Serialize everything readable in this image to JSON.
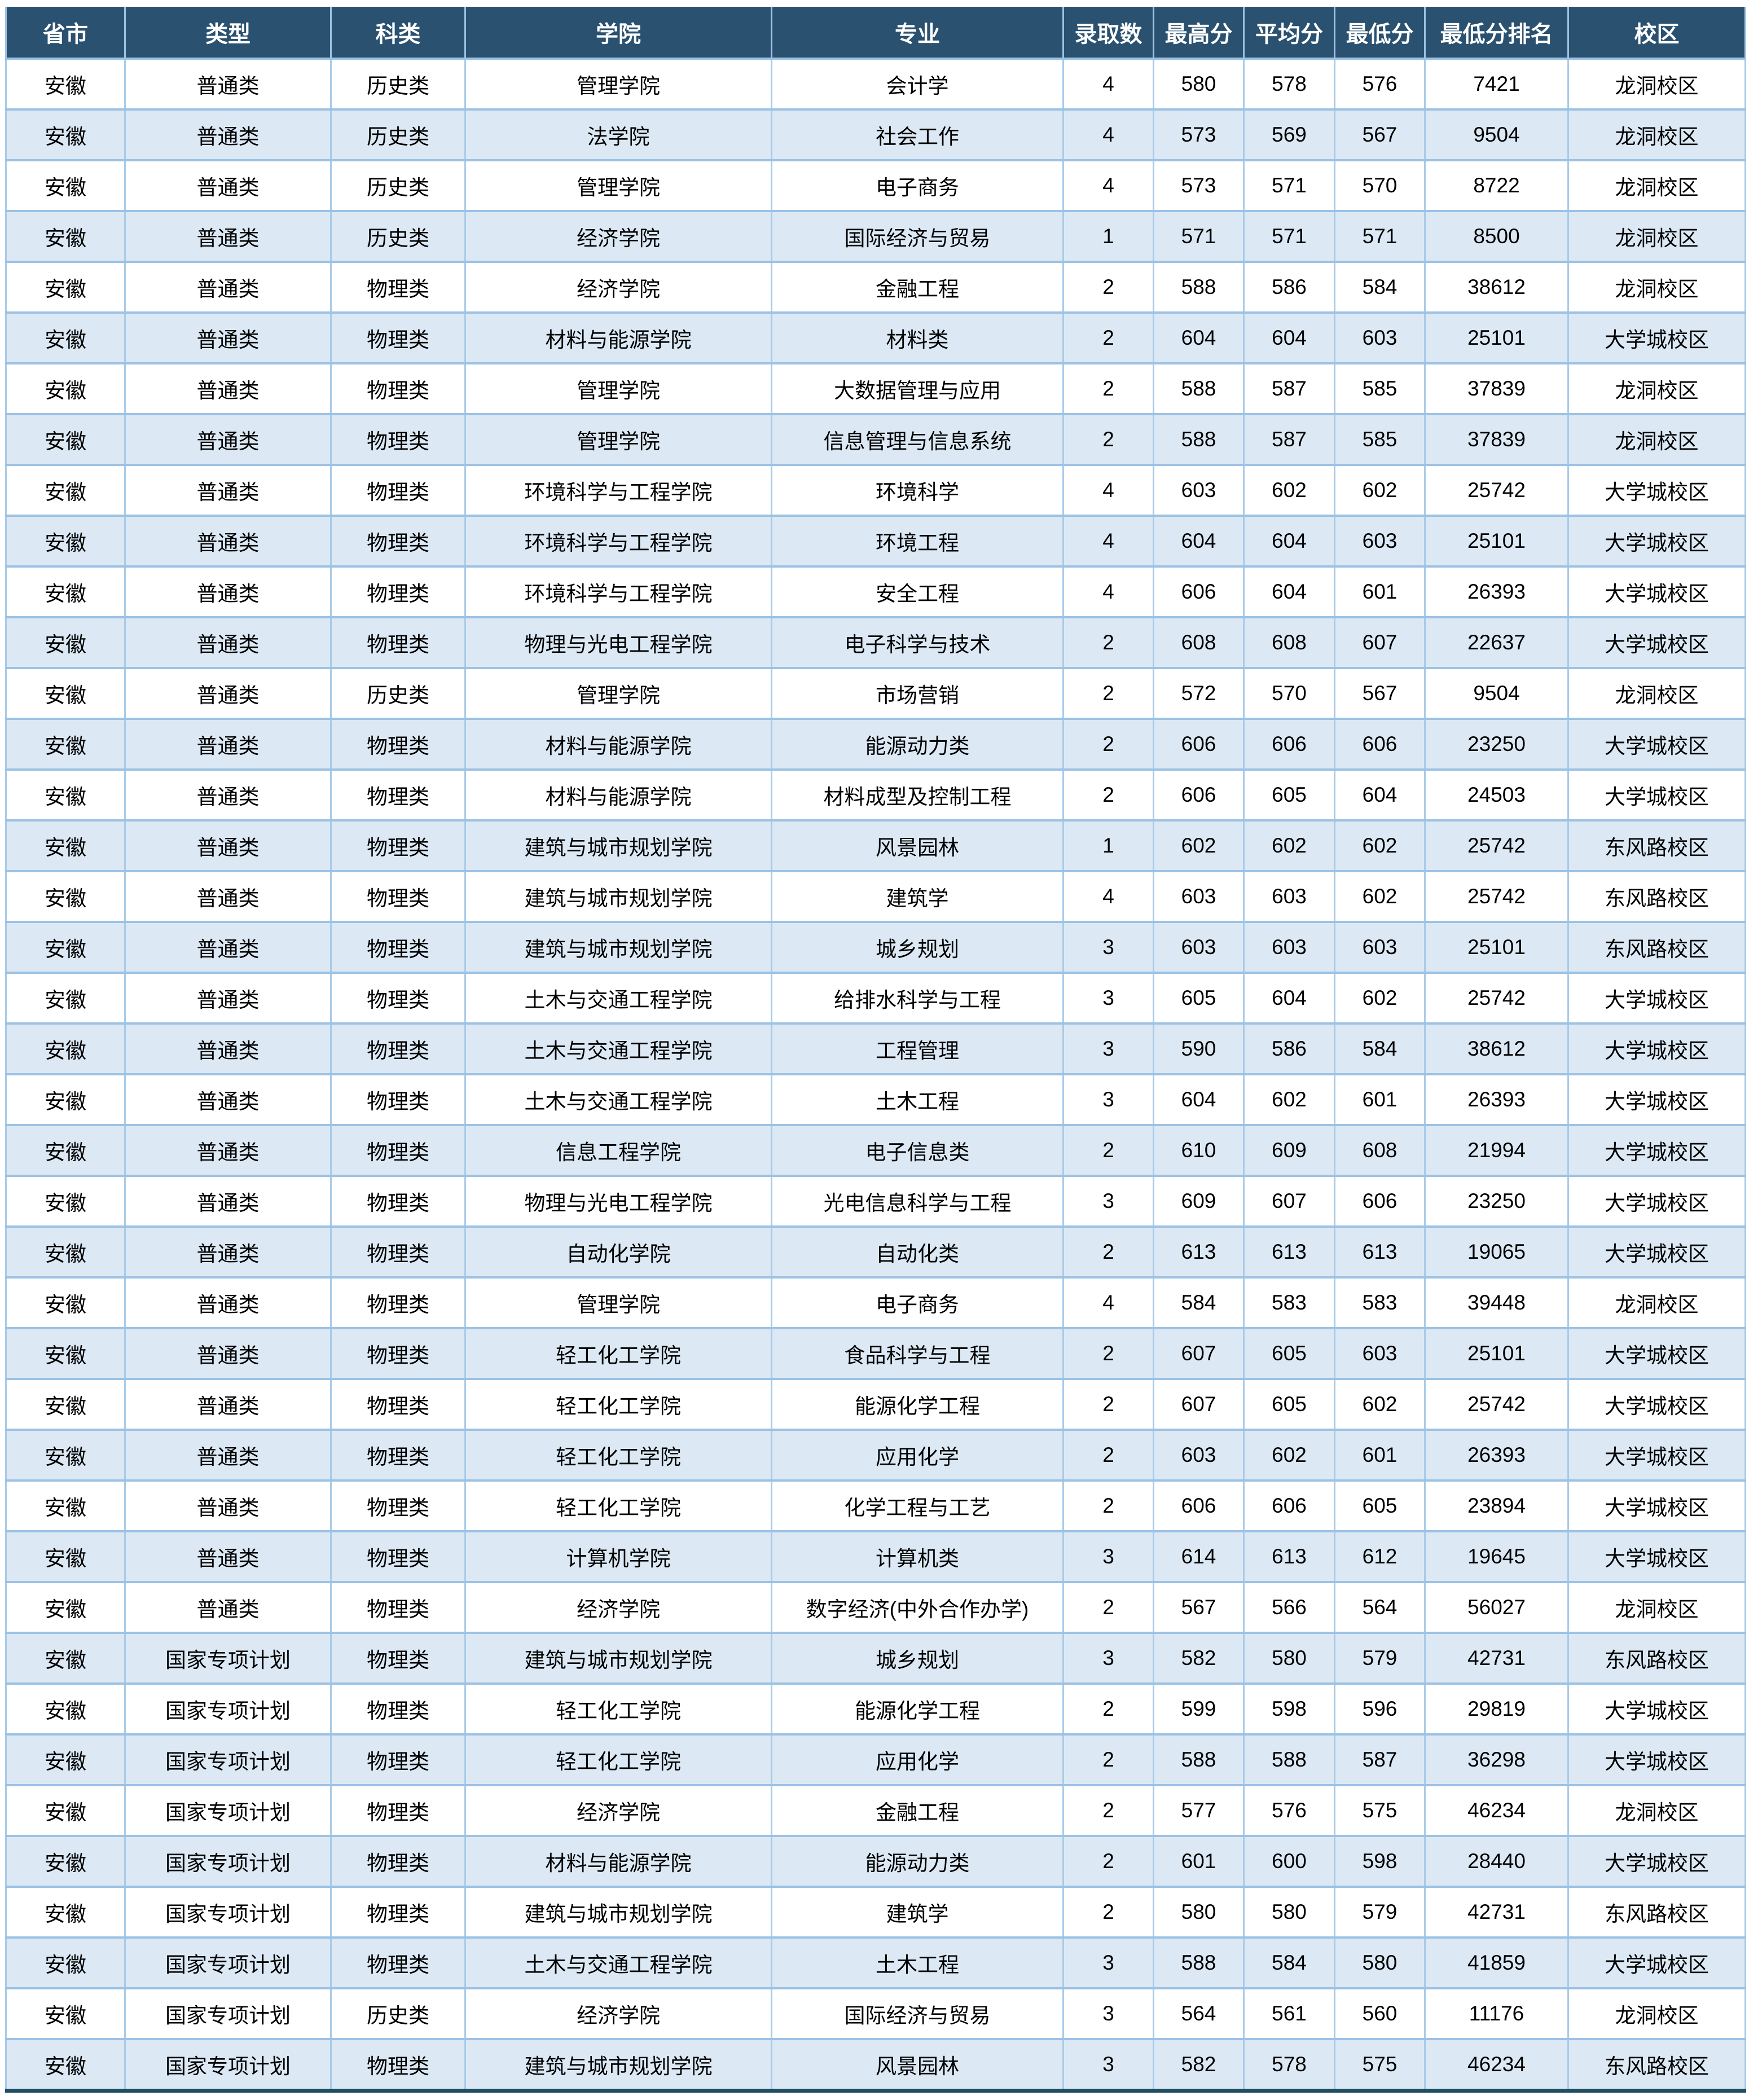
{
  "table": {
    "colors": {
      "header_bg": "#2A5170",
      "header_text": "#FFFFFF",
      "row_bg": "#FFFFFF",
      "row_alt_bg": "#DCE9F5",
      "grid_vertical": "#A8CBE9",
      "grid_horizontal": "#9CC2E4",
      "bottom_border": "#1F4E63",
      "cell_text": "#000000"
    },
    "columns": [
      "省市",
      "类型",
      "科类",
      "学院",
      "专业",
      "录取数",
      "最高分",
      "平均分",
      "最低分",
      "最低分排名",
      "校区"
    ],
    "rows": [
      [
        "安徽",
        "普通类",
        "历史类",
        "管理学院",
        "会计学",
        "4",
        "580",
        "578",
        "576",
        "7421",
        "龙洞校区"
      ],
      [
        "安徽",
        "普通类",
        "历史类",
        "法学院",
        "社会工作",
        "4",
        "573",
        "569",
        "567",
        "9504",
        "龙洞校区"
      ],
      [
        "安徽",
        "普通类",
        "历史类",
        "管理学院",
        "电子商务",
        "4",
        "573",
        "571",
        "570",
        "8722",
        "龙洞校区"
      ],
      [
        "安徽",
        "普通类",
        "历史类",
        "经济学院",
        "国际经济与贸易",
        "1",
        "571",
        "571",
        "571",
        "8500",
        "龙洞校区"
      ],
      [
        "安徽",
        "普通类",
        "物理类",
        "经济学院",
        "金融工程",
        "2",
        "588",
        "586",
        "584",
        "38612",
        "龙洞校区"
      ],
      [
        "安徽",
        "普通类",
        "物理类",
        "材料与能源学院",
        "材料类",
        "2",
        "604",
        "604",
        "603",
        "25101",
        "大学城校区"
      ],
      [
        "安徽",
        "普通类",
        "物理类",
        "管理学院",
        "大数据管理与应用",
        "2",
        "588",
        "587",
        "585",
        "37839",
        "龙洞校区"
      ],
      [
        "安徽",
        "普通类",
        "物理类",
        "管理学院",
        "信息管理与信息系统",
        "2",
        "588",
        "587",
        "585",
        "37839",
        "龙洞校区"
      ],
      [
        "安徽",
        "普通类",
        "物理类",
        "环境科学与工程学院",
        "环境科学",
        "4",
        "603",
        "602",
        "602",
        "25742",
        "大学城校区"
      ],
      [
        "安徽",
        "普通类",
        "物理类",
        "环境科学与工程学院",
        "环境工程",
        "4",
        "604",
        "604",
        "603",
        "25101",
        "大学城校区"
      ],
      [
        "安徽",
        "普通类",
        "物理类",
        "环境科学与工程学院",
        "安全工程",
        "4",
        "606",
        "604",
        "601",
        "26393",
        "大学城校区"
      ],
      [
        "安徽",
        "普通类",
        "物理类",
        "物理与光电工程学院",
        "电子科学与技术",
        "2",
        "608",
        "608",
        "607",
        "22637",
        "大学城校区"
      ],
      [
        "安徽",
        "普通类",
        "历史类",
        "管理学院",
        "市场营销",
        "2",
        "572",
        "570",
        "567",
        "9504",
        "龙洞校区"
      ],
      [
        "安徽",
        "普通类",
        "物理类",
        "材料与能源学院",
        "能源动力类",
        "2",
        "606",
        "606",
        "606",
        "23250",
        "大学城校区"
      ],
      [
        "安徽",
        "普通类",
        "物理类",
        "材料与能源学院",
        "材料成型及控制工程",
        "2",
        "606",
        "605",
        "604",
        "24503",
        "大学城校区"
      ],
      [
        "安徽",
        "普通类",
        "物理类",
        "建筑与城市规划学院",
        "风景园林",
        "1",
        "602",
        "602",
        "602",
        "25742",
        "东风路校区"
      ],
      [
        "安徽",
        "普通类",
        "物理类",
        "建筑与城市规划学院",
        "建筑学",
        "4",
        "603",
        "603",
        "602",
        "25742",
        "东风路校区"
      ],
      [
        "安徽",
        "普通类",
        "物理类",
        "建筑与城市规划学院",
        "城乡规划",
        "3",
        "603",
        "603",
        "603",
        "25101",
        "东风路校区"
      ],
      [
        "安徽",
        "普通类",
        "物理类",
        "土木与交通工程学院",
        "给排水科学与工程",
        "3",
        "605",
        "604",
        "602",
        "25742",
        "大学城校区"
      ],
      [
        "安徽",
        "普通类",
        "物理类",
        "土木与交通工程学院",
        "工程管理",
        "3",
        "590",
        "586",
        "584",
        "38612",
        "大学城校区"
      ],
      [
        "安徽",
        "普通类",
        "物理类",
        "土木与交通工程学院",
        "土木工程",
        "3",
        "604",
        "602",
        "601",
        "26393",
        "大学城校区"
      ],
      [
        "安徽",
        "普通类",
        "物理类",
        "信息工程学院",
        "电子信息类",
        "2",
        "610",
        "609",
        "608",
        "21994",
        "大学城校区"
      ],
      [
        "安徽",
        "普通类",
        "物理类",
        "物理与光电工程学院",
        "光电信息科学与工程",
        "3",
        "609",
        "607",
        "606",
        "23250",
        "大学城校区"
      ],
      [
        "安徽",
        "普通类",
        "物理类",
        "自动化学院",
        "自动化类",
        "2",
        "613",
        "613",
        "613",
        "19065",
        "大学城校区"
      ],
      [
        "安徽",
        "普通类",
        "物理类",
        "管理学院",
        "电子商务",
        "4",
        "584",
        "583",
        "583",
        "39448",
        "龙洞校区"
      ],
      [
        "安徽",
        "普通类",
        "物理类",
        "轻工化工学院",
        "食品科学与工程",
        "2",
        "607",
        "605",
        "603",
        "25101",
        "大学城校区"
      ],
      [
        "安徽",
        "普通类",
        "物理类",
        "轻工化工学院",
        "能源化学工程",
        "2",
        "607",
        "605",
        "602",
        "25742",
        "大学城校区"
      ],
      [
        "安徽",
        "普通类",
        "物理类",
        "轻工化工学院",
        "应用化学",
        "2",
        "603",
        "602",
        "601",
        "26393",
        "大学城校区"
      ],
      [
        "安徽",
        "普通类",
        "物理类",
        "轻工化工学院",
        "化学工程与工艺",
        "2",
        "606",
        "606",
        "605",
        "23894",
        "大学城校区"
      ],
      [
        "安徽",
        "普通类",
        "物理类",
        "计算机学院",
        "计算机类",
        "3",
        "614",
        "613",
        "612",
        "19645",
        "大学城校区"
      ],
      [
        "安徽",
        "普通类",
        "物理类",
        "经济学院",
        "数字经济(中外合作办学)",
        "2",
        "567",
        "566",
        "564",
        "56027",
        "龙洞校区"
      ],
      [
        "安徽",
        "国家专项计划",
        "物理类",
        "建筑与城市规划学院",
        "城乡规划",
        "3",
        "582",
        "580",
        "579",
        "42731",
        "东风路校区"
      ],
      [
        "安徽",
        "国家专项计划",
        "物理类",
        "轻工化工学院",
        "能源化学工程",
        "2",
        "599",
        "598",
        "596",
        "29819",
        "大学城校区"
      ],
      [
        "安徽",
        "国家专项计划",
        "物理类",
        "轻工化工学院",
        "应用化学",
        "2",
        "588",
        "588",
        "587",
        "36298",
        "大学城校区"
      ],
      [
        "安徽",
        "国家专项计划",
        "物理类",
        "经济学院",
        "金融工程",
        "2",
        "577",
        "576",
        "575",
        "46234",
        "龙洞校区"
      ],
      [
        "安徽",
        "国家专项计划",
        "物理类",
        "材料与能源学院",
        "能源动力类",
        "2",
        "601",
        "600",
        "598",
        "28440",
        "大学城校区"
      ],
      [
        "安徽",
        "国家专项计划",
        "物理类",
        "建筑与城市规划学院",
        "建筑学",
        "2",
        "580",
        "580",
        "579",
        "42731",
        "东风路校区"
      ],
      [
        "安徽",
        "国家专项计划",
        "物理类",
        "土木与交通工程学院",
        "土木工程",
        "3",
        "588",
        "584",
        "580",
        "41859",
        "大学城校区"
      ],
      [
        "安徽",
        "国家专项计划",
        "历史类",
        "经济学院",
        "国际经济与贸易",
        "3",
        "564",
        "561",
        "560",
        "11176",
        "龙洞校区"
      ],
      [
        "安徽",
        "国家专项计划",
        "物理类",
        "建筑与城市规划学院",
        "风景园林",
        "3",
        "582",
        "578",
        "575",
        "46234",
        "东风路校区"
      ]
    ]
  }
}
